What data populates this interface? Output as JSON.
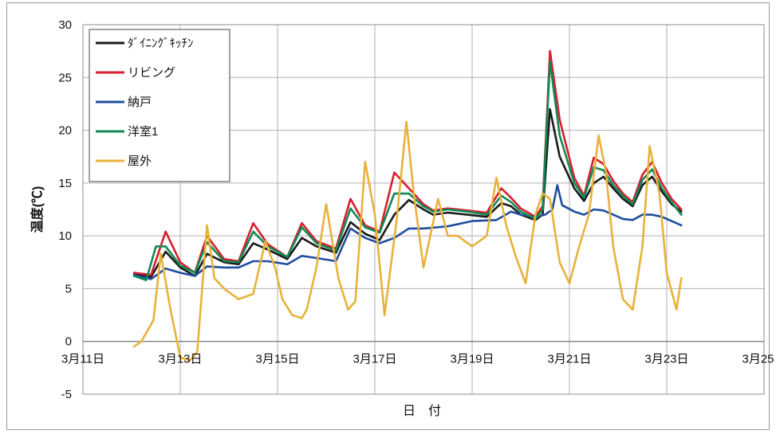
{
  "chart_data": {
    "type": "line",
    "xlabel": "日　付",
    "ylabel": "温度(℃)",
    "ylim": [
      -5,
      30
    ],
    "yticks": [
      30,
      25,
      20,
      15,
      10,
      5,
      0,
      -5
    ],
    "xlim": [
      11,
      25
    ],
    "xticks": [
      {
        "value": 11,
        "label": "3月11日"
      },
      {
        "value": 13,
        "label": "3月13日"
      },
      {
        "value": 15,
        "label": "3月15日"
      },
      {
        "value": 17,
        "label": "3月17日"
      },
      {
        "value": 19,
        "label": "3月19日"
      },
      {
        "value": 21,
        "label": "3月21日"
      },
      {
        "value": 23,
        "label": "3月23日"
      },
      {
        "value": 25,
        "label": "3月25日"
      }
    ],
    "grid": true,
    "legend": "top-left",
    "series": [
      {
        "name": "ﾀﾞｲﾆﾝｸﾞｷｯﾁﾝ",
        "color": "#1a1a1a",
        "x": [
          12.05,
          12.4,
          12.7,
          13.0,
          13.3,
          13.55,
          13.9,
          14.2,
          14.5,
          14.8,
          15.2,
          15.5,
          15.8,
          16.2,
          16.5,
          16.8,
          17.1,
          17.4,
          17.7,
          18.0,
          18.2,
          18.5,
          18.9,
          19.3,
          19.6,
          19.8,
          20.0,
          20.3,
          20.45,
          20.6,
          20.8,
          21.1,
          21.3,
          21.5,
          21.7,
          21.9,
          22.1,
          22.3,
          22.5,
          22.7,
          22.9,
          23.1,
          23.3
        ],
        "y": [
          6.4,
          6.1,
          8.5,
          7.0,
          6.2,
          8.3,
          7.5,
          7.3,
          9.3,
          8.7,
          7.8,
          9.8,
          9.0,
          8.4,
          11.3,
          10.2,
          9.6,
          12.0,
          13.4,
          12.5,
          12.0,
          12.2,
          12.0,
          11.8,
          13.1,
          12.8,
          12.0,
          11.5,
          12.0,
          22.0,
          17.5,
          14.5,
          13.3,
          15.0,
          15.6,
          14.5,
          13.5,
          12.8,
          14.8,
          15.6,
          14.2,
          13.0,
          12.3
        ]
      },
      {
        "name": "リビング",
        "color": "#d81e2e",
        "x": [
          12.05,
          12.4,
          12.7,
          13.0,
          13.3,
          13.55,
          13.9,
          14.2,
          14.5,
          14.8,
          15.2,
          15.5,
          15.8,
          16.2,
          16.5,
          16.8,
          17.1,
          17.4,
          17.7,
          18.0,
          18.2,
          18.5,
          18.9,
          19.3,
          19.6,
          19.8,
          20.0,
          20.3,
          20.45,
          20.6,
          20.8,
          21.1,
          21.3,
          21.5,
          21.7,
          21.9,
          22.1,
          22.3,
          22.5,
          22.7,
          22.9,
          23.1,
          23.3
        ],
        "y": [
          6.5,
          6.3,
          10.4,
          7.5,
          6.5,
          10.0,
          7.8,
          7.6,
          11.2,
          9.2,
          8.0,
          11.2,
          9.5,
          8.8,
          13.5,
          11.0,
          10.4,
          16.0,
          14.5,
          13.0,
          12.4,
          12.6,
          12.4,
          12.2,
          14.5,
          13.6,
          12.6,
          11.8,
          12.8,
          27.5,
          21.0,
          15.5,
          13.8,
          17.4,
          16.8,
          15.2,
          14.0,
          13.2,
          15.8,
          17.0,
          15.0,
          13.5,
          12.5
        ]
      },
      {
        "name": "納戸",
        "color": "#1f4ea1",
        "x": [
          12.05,
          12.4,
          12.7,
          13.0,
          13.3,
          13.55,
          13.9,
          14.2,
          14.5,
          14.8,
          15.2,
          15.5,
          15.8,
          16.2,
          16.5,
          16.8,
          17.1,
          17.4,
          17.7,
          18.0,
          18.5,
          19.0,
          19.5,
          19.8,
          20.0,
          20.3,
          20.5,
          20.65,
          20.75,
          20.85,
          21.1,
          21.3,
          21.5,
          21.7,
          21.9,
          22.1,
          22.3,
          22.5,
          22.7,
          22.9,
          23.1,
          23.3
        ],
        "y": [
          6.3,
          5.9,
          6.9,
          6.5,
          6.2,
          7.1,
          7.0,
          7.0,
          7.6,
          7.6,
          7.3,
          8.1,
          7.9,
          7.6,
          10.7,
          9.8,
          9.3,
          9.8,
          10.7,
          10.7,
          10.9,
          11.4,
          11.5,
          12.3,
          12.0,
          11.8,
          12.0,
          12.5,
          14.8,
          12.9,
          12.3,
          12.0,
          12.5,
          12.4,
          12.0,
          11.6,
          11.5,
          12.0,
          12.0,
          11.8,
          11.4,
          11.0
        ]
      },
      {
        "name": "洋室1",
        "color": "#118a55",
        "x": [
          12.05,
          12.3,
          12.5,
          12.7,
          13.0,
          13.3,
          13.55,
          13.9,
          14.2,
          14.5,
          14.8,
          15.2,
          15.5,
          15.8,
          16.2,
          16.5,
          16.8,
          17.1,
          17.4,
          17.7,
          18.0,
          18.2,
          18.5,
          18.9,
          19.3,
          19.6,
          19.8,
          20.0,
          20.3,
          20.45,
          20.6,
          20.8,
          21.1,
          21.3,
          21.5,
          21.7,
          21.9,
          22.1,
          22.3,
          22.5,
          22.7,
          22.9,
          23.1,
          23.3
        ],
        "y": [
          6.2,
          5.8,
          9.0,
          9.0,
          7.2,
          6.5,
          9.4,
          7.6,
          7.5,
          10.4,
          9.0,
          8.0,
          10.8,
          9.3,
          8.6,
          12.6,
          10.8,
          10.3,
          14.0,
          14.0,
          12.8,
          12.3,
          12.5,
          12.3,
          12.0,
          13.8,
          13.2,
          12.3,
          11.6,
          12.5,
          26.5,
          19.5,
          15.0,
          13.6,
          16.5,
          16.2,
          14.8,
          13.8,
          13.0,
          15.3,
          16.3,
          14.5,
          13.2,
          12.0
        ]
      },
      {
        "name": "屋外",
        "color": "#e8b23a",
        "x": [
          12.05,
          12.2,
          12.45,
          12.6,
          12.8,
          13.0,
          13.2,
          13.35,
          13.55,
          13.7,
          13.9,
          14.2,
          14.5,
          14.75,
          14.95,
          15.1,
          15.3,
          15.5,
          15.6,
          15.8,
          16.0,
          16.25,
          16.45,
          16.6,
          16.8,
          17.0,
          17.2,
          17.45,
          17.65,
          17.8,
          18.0,
          18.3,
          18.5,
          18.7,
          19.0,
          19.3,
          19.5,
          19.7,
          19.9,
          20.1,
          20.3,
          20.45,
          20.6,
          20.8,
          21.0,
          21.2,
          21.4,
          21.6,
          21.75,
          21.9,
          22.1,
          22.3,
          22.5,
          22.65,
          22.85,
          23.0,
          23.2,
          23.3
        ],
        "y": [
          -0.5,
          0.0,
          2.0,
          8.3,
          3.0,
          -1.5,
          -1.8,
          -1.0,
          11.0,
          6.0,
          5.0,
          4.0,
          4.5,
          9.5,
          7.0,
          4.0,
          2.5,
          2.2,
          3.0,
          7.0,
          13.0,
          6.0,
          3.0,
          3.8,
          17.0,
          12.0,
          2.5,
          11.5,
          20.8,
          14.0,
          7.0,
          13.5,
          10.0,
          10.0,
          9.0,
          10.0,
          15.5,
          11.0,
          8.0,
          5.5,
          12.0,
          14.0,
          13.5,
          7.5,
          5.5,
          9.0,
          12.0,
          19.5,
          16.0,
          9.0,
          4.0,
          3.0,
          9.0,
          18.5,
          14.0,
          6.5,
          3.0,
          6.0
        ]
      }
    ]
  }
}
